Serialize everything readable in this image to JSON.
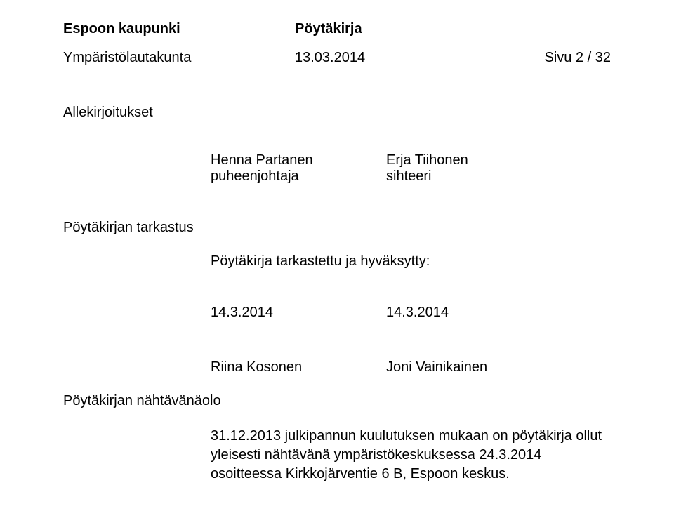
{
  "header": {
    "orgName": "Espoon kaupunki",
    "docType": "Pöytäkirja",
    "boardName": "Ympäristölautakunta",
    "date": "13.03.2014",
    "pageLabel": "Sivu 2 / 32"
  },
  "signatures": {
    "sectionTitle": "Allekirjoitukset",
    "left": {
      "name": "Henna Partanen",
      "role": "puheenjohtaja"
    },
    "right": {
      "name": "Erja Tiihonen",
      "role": "sihteeri"
    }
  },
  "inspection": {
    "title": "Pöytäkirjan tarkastus",
    "sub": "Pöytäkirja tarkastettu ja hyväksytty:",
    "dateLeft": "14.3.2014",
    "dateRight": "14.3.2014",
    "nameLeft": "Riina Kosonen",
    "nameRight": "Joni Vainikainen"
  },
  "availability": {
    "title": "Pöytäkirjan nähtävänäolo",
    "body": "31.12.2013 julkipannun kuulutuksen mukaan on pöytäkirja ollut yleisesti nähtävänä ympäristökeskuksessa 24.3.2014 osoitteessa Kirkkojärventie 6 B, Espoon keskus."
  }
}
